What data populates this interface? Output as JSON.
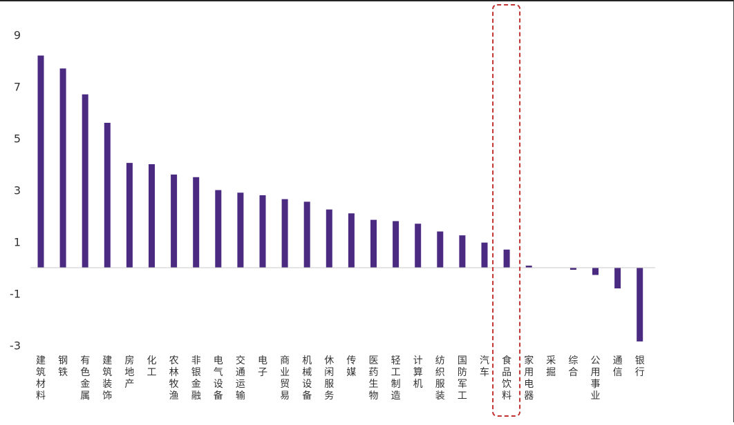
{
  "chart_data": {
    "type": "bar",
    "categories": [
      "建筑材料",
      "钢铁",
      "有色金属",
      "建筑装饰",
      "房地产",
      "化工",
      "农林牧渔",
      "非银金融",
      "电气设备",
      "交通运输",
      "电子",
      "商业贸易",
      "机械设备",
      "休闲服务",
      "传媒",
      "医药生物",
      "轻工制造",
      "计算机",
      "纺织服装",
      "国防军工",
      "汽车",
      "食品饮料",
      "家用电器",
      "采掘",
      "综合",
      "公用事业",
      "通信",
      "银行"
    ],
    "values": [
      8.2,
      7.7,
      6.7,
      5.6,
      4.05,
      4.0,
      3.6,
      3.5,
      3.0,
      2.9,
      2.8,
      2.65,
      2.55,
      2.25,
      2.1,
      1.85,
      1.8,
      1.7,
      1.4,
      1.25,
      0.97,
      0.7,
      0.08,
      0.0,
      -0.08,
      -0.28,
      -0.8,
      -2.85
    ],
    "yticks": [
      "9",
      "7",
      "5",
      "3",
      "1",
      "-1",
      "-3"
    ],
    "ytick_values": [
      9,
      7,
      5,
      3,
      1,
      -1,
      -3
    ],
    "ylim": [
      -3,
      9
    ],
    "grid": false,
    "legend": "none",
    "highlight_category": "食品饮料",
    "colors": {
      "bar": "#4b2a82",
      "axis": "#c8c8c8",
      "highlight_box": "#c0302e",
      "text": "#333333"
    },
    "title": "",
    "xlabel": "",
    "ylabel": ""
  }
}
